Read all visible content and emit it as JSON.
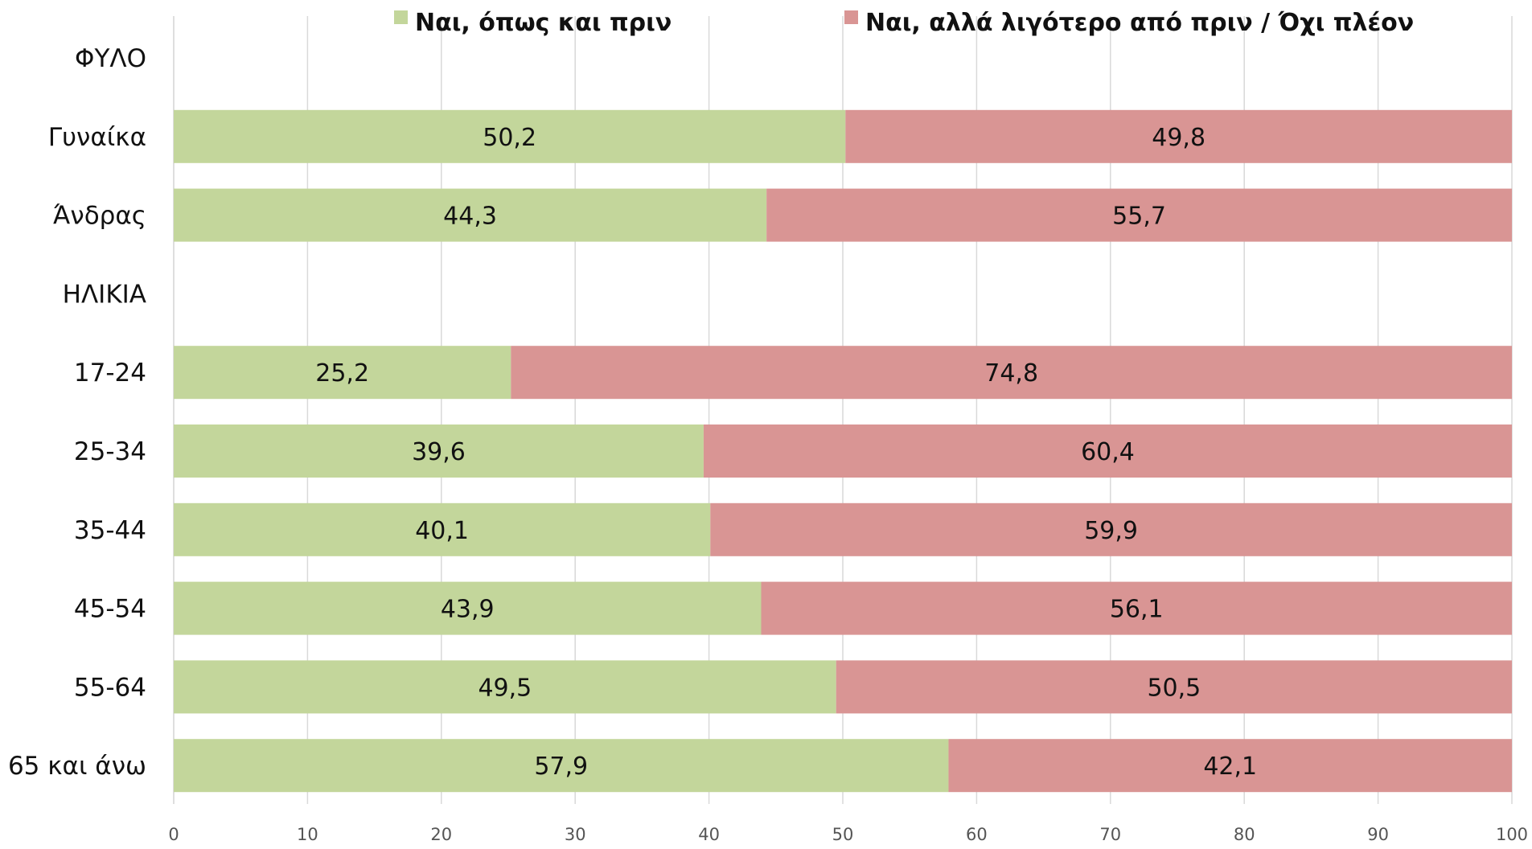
{
  "chart_data": {
    "type": "bar",
    "orientation": "horizontal",
    "stacked": true,
    "categories": [
      "ΦΥΛΟ",
      "Γυναίκα",
      "Άνδρας",
      "ΗΛΙΚΙΑ",
      "17-24",
      "25-34",
      "35-44",
      "45-54",
      "55-64",
      "65 και άνω"
    ],
    "series": [
      {
        "name": "Ναι, όπως και πριν",
        "color": "#c3d69b",
        "values": [
          null,
          50.2,
          44.3,
          null,
          25.2,
          39.6,
          40.1,
          43.9,
          49.5,
          57.9
        ],
        "labels": [
          "",
          "50,2",
          "44,3",
          "",
          "25,2",
          "39,6",
          "40,1",
          "43,9",
          "49,5",
          "57,9"
        ]
      },
      {
        "name": "Ναι, αλλά λιγότερο από πριν / Όχι πλέον",
        "color": "#d99594",
        "values": [
          null,
          49.8,
          55.7,
          null,
          74.8,
          60.4,
          59.9,
          56.1,
          50.5,
          42.1
        ],
        "labels": [
          "",
          "49,8",
          "55,7",
          "",
          "74,8",
          "60,4",
          "59,9",
          "56,1",
          "50,5",
          "42,1"
        ]
      }
    ],
    "xlim": [
      0,
      100
    ],
    "xticks": [
      "0",
      "10",
      "20",
      "30",
      "40",
      "50",
      "60",
      "70",
      "80",
      "90",
      "100"
    ],
    "grid": true,
    "legend_position": "top"
  }
}
